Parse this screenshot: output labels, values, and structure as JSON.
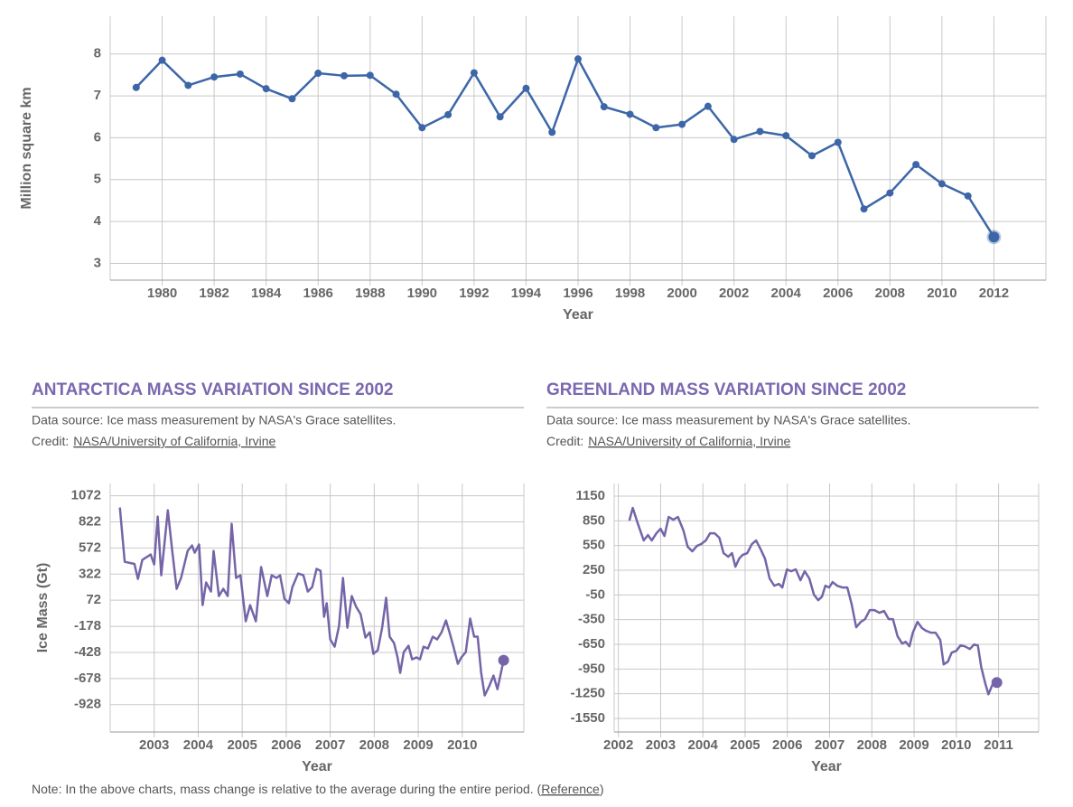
{
  "chart_data": [
    {
      "type": "line",
      "color": "#3d66a8",
      "markers": true,
      "end_marker": true,
      "grid": true,
      "x": [
        1979,
        1980,
        1981,
        1982,
        1983,
        1984,
        1985,
        1986,
        1987,
        1988,
        1989,
        1990,
        1991,
        1992,
        1993,
        1994,
        1995,
        1996,
        1997,
        1998,
        1999,
        2000,
        2001,
        2002,
        2003,
        2004,
        2005,
        2006,
        2007,
        2008,
        2009,
        2010,
        2011,
        2012
      ],
      "values": [
        7.2,
        7.85,
        7.25,
        7.45,
        7.52,
        7.17,
        6.93,
        7.54,
        7.48,
        7.49,
        7.04,
        6.24,
        6.55,
        7.55,
        6.5,
        7.18,
        6.13,
        7.88,
        6.74,
        6.56,
        6.24,
        6.32,
        6.75,
        5.96,
        6.15,
        6.05,
        5.57,
        5.89,
        4.3,
        4.68,
        5.36,
        4.9,
        4.61,
        3.63
      ],
      "xlim": [
        1978,
        2014
      ],
      "xticks": [
        1980,
        1982,
        1984,
        1986,
        1988,
        1990,
        1992,
        1994,
        1996,
        1998,
        2000,
        2002,
        2004,
        2006,
        2008,
        2010,
        2012
      ],
      "ylim": [
        2.6,
        8.9
      ],
      "yticks": [
        3,
        4,
        5,
        6,
        7,
        8
      ],
      "xlabel": "Year",
      "ylabel": "Million square km"
    },
    {
      "type": "line",
      "title": "ANTARCTICA MASS VARIATION SINCE 2002",
      "source": "Data source: Ice mass measurement by NASA's Grace satellites.",
      "credit": "Credit:",
      "credit_link": "NASA/University of California, Irvine",
      "color": "#7565a8",
      "markers": false,
      "end_marker": true,
      "grid": true,
      "x": [
        2002.22,
        2002.33,
        2002.55,
        2002.63,
        2002.73,
        2002.92,
        2003.0,
        2003.08,
        2003.16,
        2003.31,
        2003.41,
        2003.51,
        2003.61,
        2003.76,
        2003.86,
        2003.92,
        2004.02,
        2004.1,
        2004.18,
        2004.29,
        2004.35,
        2004.47,
        2004.57,
        2004.67,
        2004.76,
        2004.86,
        2004.96,
        2005.08,
        2005.18,
        2005.31,
        2005.43,
        2005.57,
        2005.67,
        2005.78,
        2005.86,
        2005.96,
        2006.06,
        2006.14,
        2006.27,
        2006.39,
        2006.49,
        2006.59,
        2006.69,
        2006.78,
        2006.86,
        2006.92,
        2007.0,
        2007.1,
        2007.2,
        2007.29,
        2007.39,
        2007.49,
        2007.59,
        2007.69,
        2007.8,
        2007.9,
        2007.98,
        2008.08,
        2008.18,
        2008.27,
        2008.35,
        2008.45,
        2008.53,
        2008.59,
        2008.67,
        2008.78,
        2008.86,
        2008.96,
        2009.04,
        2009.12,
        2009.22,
        2009.33,
        2009.43,
        2009.53,
        2009.63,
        2009.71,
        2009.8,
        2009.9,
        2009.98,
        2010.08,
        2010.18,
        2010.27,
        2010.35,
        2010.43,
        2010.51,
        2010.61,
        2010.71,
        2010.8,
        2010.94
      ],
      "values": [
        960,
        440,
        420,
        276,
        458,
        510,
        415,
        873,
        311,
        934,
        544,
        181,
        285,
        544,
        596,
        527,
        605,
        25,
        242,
        155,
        544,
        112,
        181,
        112,
        804,
        285,
        311,
        -130,
        25,
        -130,
        389,
        112,
        311,
        285,
        311,
        86,
        43,
        198,
        328,
        311,
        155,
        198,
        372,
        354,
        -87,
        43,
        -303,
        -373,
        -174,
        285,
        -191,
        112,
        8,
        -61,
        -286,
        -235,
        -442,
        -407,
        -191,
        95,
        -277,
        -338,
        -476,
        -624,
        -425,
        -364,
        -494,
        -476,
        -494,
        -373,
        -390,
        -277,
        -303,
        -235,
        -122,
        -235,
        -373,
        -537,
        -476,
        -425,
        -104,
        -277,
        -277,
        -624,
        -840,
        -754,
        -650,
        -780,
        -503
      ],
      "xlim": [
        2002,
        2011.4
      ],
      "xticks": [
        2003,
        2004,
        2005,
        2006,
        2007,
        2008,
        2009,
        2010
      ],
      "ylim": [
        -1190,
        1190
      ],
      "yticks": [
        1072,
        822,
        572,
        322,
        72,
        -178,
        -428,
        -678,
        -928
      ],
      "xlabel": "Year",
      "ylabel": "Ice Mass (Gt)"
    },
    {
      "type": "line",
      "title": "GREENLAND MASS VARIATION SINCE 2002",
      "source": "Data source: Ice mass measurement by NASA's Grace satellites.",
      "credit": "Credit:",
      "credit_link": "NASA/University of California, Irvine",
      "color": "#7565a8",
      "markers": false,
      "end_marker": true,
      "grid": true,
      "x": [
        2002.26,
        2002.34,
        2002.45,
        2002.6,
        2002.7,
        2002.79,
        2002.9,
        2003.0,
        2003.09,
        2003.19,
        2003.3,
        2003.41,
        2003.54,
        2003.64,
        2003.75,
        2003.86,
        2003.96,
        2004.07,
        2004.17,
        2004.28,
        2004.39,
        2004.49,
        2004.6,
        2004.69,
        2004.77,
        2004.86,
        2004.94,
        2005.05,
        2005.16,
        2005.26,
        2005.37,
        2005.47,
        2005.58,
        2005.69,
        2005.8,
        2005.88,
        2005.99,
        2006.09,
        2006.2,
        2006.31,
        2006.41,
        2006.52,
        2006.63,
        2006.73,
        2006.82,
        2006.9,
        2006.99,
        2007.07,
        2007.18,
        2007.31,
        2007.42,
        2007.52,
        2007.63,
        2007.74,
        2007.84,
        2007.95,
        2008.06,
        2008.18,
        2008.29,
        2008.4,
        2008.5,
        2008.61,
        2008.72,
        2008.8,
        2008.89,
        2008.97,
        2009.08,
        2009.19,
        2009.29,
        2009.4,
        2009.51,
        2009.62,
        2009.7,
        2009.8,
        2009.89,
        2010.0,
        2010.1,
        2010.2,
        2010.32,
        2010.42,
        2010.51,
        2010.59,
        2010.68,
        2010.76,
        2010.85,
        2010.96
      ],
      "values": [
        853,
        1007,
        831,
        612,
        677,
        612,
        699,
        754,
        666,
        897,
        864,
        897,
        732,
        535,
        480,
        546,
        568,
        612,
        699,
        699,
        644,
        458,
        414,
        458,
        293,
        392,
        436,
        458,
        568,
        612,
        502,
        392,
        150,
        62,
        84,
        40,
        260,
        238,
        260,
        128,
        238,
        150,
        -48,
        -114,
        -70,
        62,
        40,
        106,
        62,
        40,
        40,
        -158,
        -443,
        -377,
        -344,
        -234,
        -234,
        -267,
        -245,
        -344,
        -344,
        -553,
        -641,
        -619,
        -674,
        -509,
        -377,
        -454,
        -487,
        -509,
        -509,
        -597,
        -894,
        -861,
        -751,
        -729,
        -663,
        -674,
        -707,
        -652,
        -663,
        -927,
        -1114,
        -1257,
        -1147,
        -1114
      ],
      "xlim": [
        2001.9,
        2011.95
      ],
      "xticks": [
        2002,
        2003,
        2004,
        2005,
        2006,
        2007,
        2008,
        2009,
        2010,
        2011
      ],
      "ylim": [
        -1715,
        1304
      ],
      "yticks": [
        1150,
        850,
        550,
        250,
        -50,
        -350,
        -650,
        -950,
        -1250,
        -1550
      ],
      "xlabel": "Year"
    }
  ],
  "note": {
    "text": "Note: In the above charts, mass change is relative to the average during the entire period. (",
    "link": "Reference",
    "end": ")"
  }
}
